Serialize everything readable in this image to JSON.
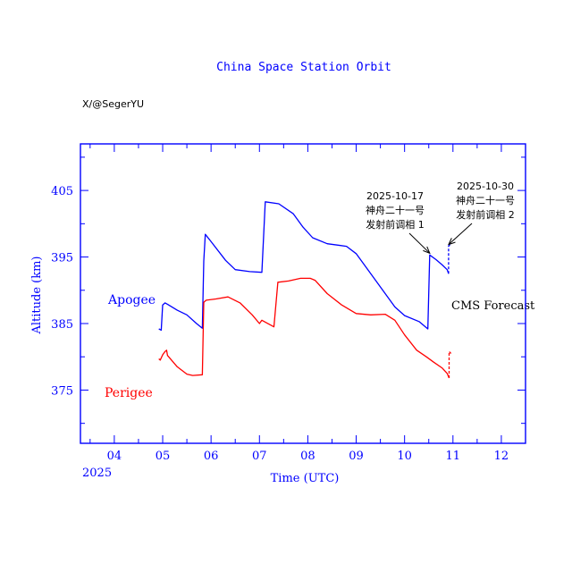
{
  "chart_data": {
    "type": "line",
    "title": "China Space Station Orbit",
    "credit": "X/@SegerYU",
    "xlabel": "Time (UTC)",
    "ylabel": "Altitude (km)",
    "year_label": "2025",
    "xlim": [
      3.3,
      12.5
    ],
    "ylim": [
      367,
      412
    ],
    "x_ticks": [
      4,
      5,
      6,
      7,
      8,
      9,
      10,
      11,
      12
    ],
    "x_tick_labels": [
      "04",
      "05",
      "06",
      "07",
      "08",
      "09",
      "10",
      "11",
      "12"
    ],
    "y_ticks": [
      375,
      385,
      395,
      405
    ],
    "y_tick_labels": [
      "375",
      "385",
      "395",
      "405"
    ],
    "y_minor_step": 5,
    "x_minor_step": 0.5,
    "colors": {
      "frame": "#0000ff",
      "apogee": "#0000ff",
      "perigee": "#ff0000",
      "text": "#000000"
    },
    "series": [
      {
        "name": "Apogee",
        "color": "#0000ff",
        "values": [
          [
            4.92,
            384.2
          ],
          [
            4.97,
            384.0
          ],
          [
            5.0,
            387.8
          ],
          [
            5.05,
            388.1
          ],
          [
            5.1,
            387.9
          ],
          [
            5.3,
            387.0
          ],
          [
            5.5,
            386.3
          ],
          [
            5.7,
            385.0
          ],
          [
            5.82,
            384.3
          ],
          [
            5.85,
            394.4
          ],
          [
            5.88,
            398.4
          ],
          [
            6.0,
            397.3
          ],
          [
            6.3,
            394.5
          ],
          [
            6.5,
            393.1
          ],
          [
            6.8,
            392.8
          ],
          [
            7.05,
            392.7
          ],
          [
            7.12,
            403.3
          ],
          [
            7.4,
            403.0
          ],
          [
            7.7,
            401.5
          ],
          [
            7.9,
            399.5
          ],
          [
            8.1,
            397.9
          ],
          [
            8.4,
            397.0
          ],
          [
            8.8,
            396.6
          ],
          [
            9.0,
            395.5
          ],
          [
            9.2,
            393.5
          ],
          [
            9.6,
            389.5
          ],
          [
            9.8,
            387.5
          ],
          [
            10.0,
            386.2
          ],
          [
            10.3,
            385.3
          ],
          [
            10.48,
            384.2
          ],
          [
            10.52,
            395.3
          ],
          [
            10.65,
            394.6
          ],
          [
            10.78,
            393.8
          ],
          [
            10.88,
            393.1
          ],
          [
            10.91,
            392.5
          ]
        ]
      },
      {
        "name": "Perigee",
        "color": "#ff0000",
        "values": [
          [
            4.92,
            379.7
          ],
          [
            4.95,
            379.5
          ],
          [
            5.0,
            380.3
          ],
          [
            5.05,
            380.8
          ],
          [
            5.08,
            381.0
          ],
          [
            5.1,
            380.2
          ],
          [
            5.3,
            378.5
          ],
          [
            5.5,
            377.4
          ],
          [
            5.62,
            377.2
          ],
          [
            5.82,
            377.3
          ],
          [
            5.85,
            388.2
          ],
          [
            5.9,
            388.5
          ],
          [
            6.1,
            388.7
          ],
          [
            6.35,
            389.0
          ],
          [
            6.6,
            388.1
          ],
          [
            6.85,
            386.3
          ],
          [
            7.0,
            385.0
          ],
          [
            7.05,
            385.5
          ],
          [
            7.15,
            385.1
          ],
          [
            7.3,
            384.5
          ],
          [
            7.38,
            391.2
          ],
          [
            7.6,
            391.4
          ],
          [
            7.85,
            391.8
          ],
          [
            8.05,
            391.8
          ],
          [
            8.15,
            391.5
          ],
          [
            8.4,
            389.5
          ],
          [
            8.7,
            387.8
          ],
          [
            9.0,
            386.5
          ],
          [
            9.3,
            386.3
          ],
          [
            9.6,
            386.4
          ],
          [
            9.8,
            385.5
          ],
          [
            10.0,
            383.3
          ],
          [
            10.25,
            381.0
          ],
          [
            10.45,
            380.0
          ],
          [
            10.6,
            379.2
          ],
          [
            10.78,
            378.3
          ],
          [
            10.88,
            377.5
          ],
          [
            10.92,
            376.8
          ]
        ]
      },
      {
        "name": "Apogee forecast",
        "color": "#0000ff",
        "dashed": true,
        "values": [
          [
            10.91,
            392.5
          ],
          [
            10.91,
            396.6
          ],
          [
            10.95,
            397.0
          ]
        ]
      },
      {
        "name": "Perigee forecast",
        "color": "#ff0000",
        "dashed": true,
        "values": [
          [
            10.92,
            376.8
          ],
          [
            10.92,
            380.8
          ],
          [
            10.96,
            380.5
          ]
        ]
      }
    ],
    "series_labels": {
      "apogee": "Apogee",
      "perigee": "Perigee",
      "forecast": "CMS Forecast"
    },
    "annotations": [
      {
        "lines": [
          "2025-10-17",
          "神舟二十一号",
          "发射前调相 1"
        ],
        "target": [
          10.52,
          395.3
        ]
      },
      {
        "lines": [
          "2025-10-30",
          "神舟二十一号",
          "发射前调相 2"
        ],
        "target": [
          10.91,
          396.6
        ]
      }
    ]
  }
}
